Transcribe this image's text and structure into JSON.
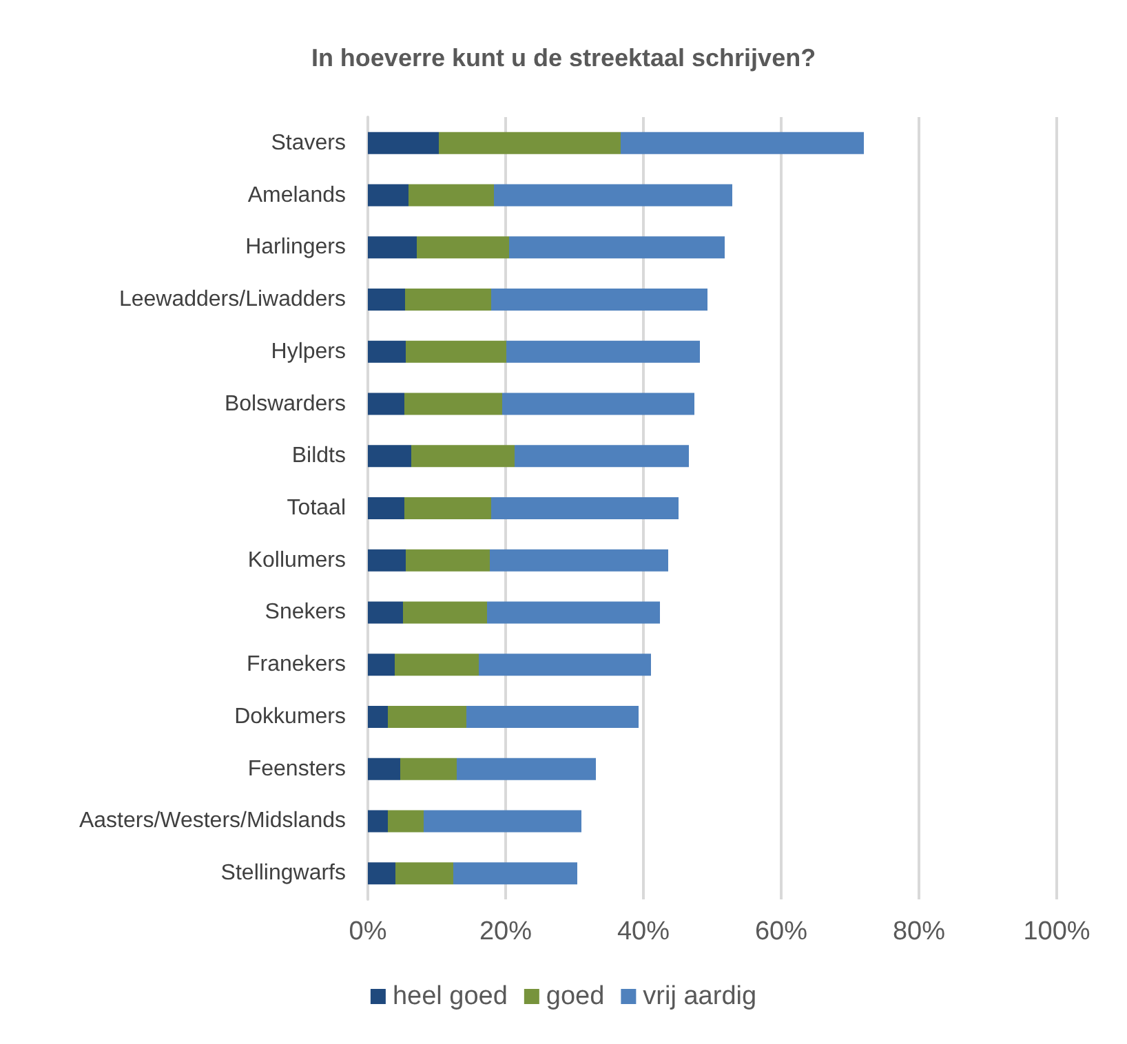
{
  "chart_data": {
    "type": "bar",
    "orientation": "horizontal",
    "stacked": true,
    "title": "In hoeverre kunt u de streektaal schrijven?",
    "categories": [
      "Stavers",
      "Amelands",
      "Harlingers",
      "Leewadders/Liwadders",
      "Hylpers",
      "Bolswarders",
      "Bildts",
      "Totaal",
      "Kollumers",
      "Snekers",
      "Franekers",
      "Dokkumers",
      "Feensters",
      "Aasters/Westers/Midslands",
      "Stellingwarfs"
    ],
    "series": [
      {
        "name": "heel goed",
        "color": "#1f497d",
        "values": [
          10.3,
          5.9,
          7.1,
          5.4,
          5.5,
          5.3,
          6.3,
          5.3,
          5.5,
          5.1,
          3.9,
          2.9,
          4.7,
          2.9,
          4.0
        ]
      },
      {
        "name": "goed",
        "color": "#77933c",
        "values": [
          26.4,
          12.4,
          13.4,
          12.5,
          14.6,
          14.2,
          15.0,
          12.6,
          12.2,
          12.2,
          12.2,
          11.4,
          8.2,
          5.2,
          8.4
        ]
      },
      {
        "name": "vrij aardig",
        "color": "#4f81bd",
        "values": [
          35.3,
          34.6,
          31.3,
          31.4,
          28.1,
          27.9,
          25.3,
          27.2,
          25.9,
          25.1,
          25.0,
          25.0,
          20.2,
          22.9,
          18.0
        ]
      }
    ],
    "xlim": [
      0,
      100
    ],
    "xticks": [
      {
        "value": 0,
        "label": "0%"
      },
      {
        "value": 20,
        "label": "20%"
      },
      {
        "value": 40,
        "label": "40%"
      },
      {
        "value": 60,
        "label": "60%"
      },
      {
        "value": 80,
        "label": "80%"
      },
      {
        "value": 100,
        "label": "100%"
      }
    ],
    "grid": "x",
    "legend": "bottom"
  }
}
